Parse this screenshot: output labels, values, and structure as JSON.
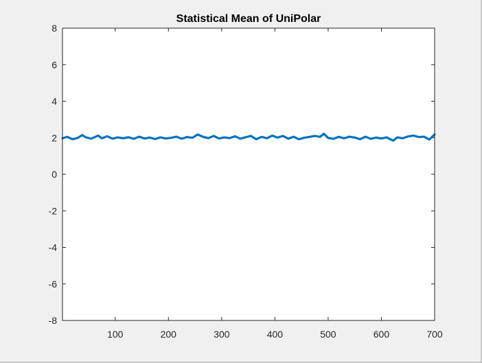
{
  "chart_data": {
    "type": "line",
    "title": "Statistical Mean of UniPolar",
    "xlabel": "",
    "ylabel": "",
    "xlim": [
      1,
      700
    ],
    "ylim": [
      -8,
      8
    ],
    "x_ticks": [
      100,
      200,
      300,
      400,
      500,
      600,
      700
    ],
    "y_ticks": [
      -8,
      -6,
      -4,
      -2,
      0,
      2,
      4,
      6,
      8
    ],
    "grid": false,
    "line_color": "#0072BD",
    "background_color": "#f0f0f0",
    "axes_color": "#ffffff",
    "series": [
      {
        "x": [
          1,
          10,
          20,
          30,
          38,
          45,
          55,
          68,
          75,
          85,
          95,
          105,
          115,
          125,
          135,
          145,
          155,
          165,
          175,
          185,
          195,
          205,
          215,
          225,
          235,
          245,
          255,
          265,
          275,
          285,
          295,
          305,
          315,
          325,
          335,
          345,
          355,
          365,
          375,
          385,
          395,
          405,
          415,
          425,
          435,
          445,
          455,
          465,
          475,
          485,
          492,
          500,
          510,
          520,
          530,
          540,
          550,
          560,
          570,
          580,
          590,
          600,
          610,
          622,
          630,
          640,
          650,
          660,
          670,
          680,
          690,
          700
        ],
        "y": [
          1.97,
          2.05,
          1.92,
          2.0,
          2.15,
          2.02,
          1.95,
          2.12,
          1.97,
          2.08,
          1.95,
          2.02,
          1.97,
          2.03,
          1.94,
          2.06,
          1.96,
          2.01,
          1.93,
          2.02,
          1.96,
          2.0,
          2.06,
          1.95,
          2.04,
          2.0,
          2.18,
          2.05,
          1.98,
          2.1,
          1.96,
          2.02,
          1.98,
          2.08,
          1.95,
          2.03,
          2.1,
          1.92,
          2.05,
          1.97,
          2.12,
          2.01,
          2.1,
          1.95,
          2.06,
          1.92,
          2.0,
          2.05,
          2.1,
          2.05,
          2.22,
          1.99,
          1.94,
          2.05,
          1.97,
          2.06,
          2.01,
          1.92,
          2.06,
          1.94,
          2.01,
          1.96,
          2.02,
          1.84,
          2.02,
          1.97,
          2.07,
          2.12,
          2.04,
          2.06,
          1.9,
          2.18
        ]
      }
    ]
  }
}
